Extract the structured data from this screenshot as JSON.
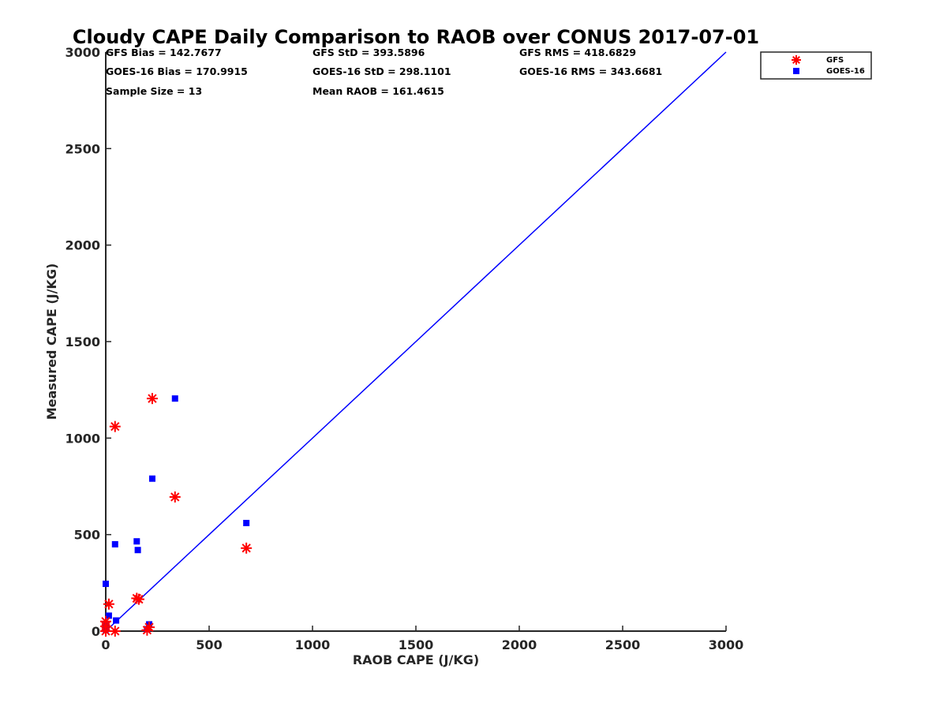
{
  "colors": {
    "gfs": "#ff0000",
    "goes": "#0000ff",
    "line": "#0000ff",
    "axis": "#262626"
  },
  "chart_data": {
    "type": "scatter",
    "title": "Cloudy CAPE Daily Comparison to RAOB over CONUS 2017-07-01",
    "xlabel": "RAOB CAPE (J/KG)",
    "ylabel": "Measured CAPE (J/KG)",
    "xlim": [
      0,
      3000
    ],
    "ylim": [
      0,
      3000
    ],
    "xticks": [
      "0",
      "500",
      "1000",
      "1500",
      "2000",
      "2500",
      "3000"
    ],
    "yticks": [
      "0",
      "500",
      "1000",
      "1500",
      "2000",
      "2500",
      "3000"
    ],
    "grid": false,
    "legend_position": "top-right",
    "stats": [
      "GFS Bias = 142.7677",
      "GFS StD = 393.5896",
      "GFS RMS = 418.6829",
      "GOES-16 Bias = 170.9915",
      "GOES-16 StD = 298.1101",
      "GOES-16 RMS = 343.6681",
      "Sample Size = 13",
      "Mean RAOB = 161.4615"
    ],
    "series": [
      {
        "name": "GFS",
        "marker": "asterisk",
        "points": [
          [
            0,
            0
          ],
          [
            0,
            50
          ],
          [
            0,
            25
          ],
          [
            15,
            140
          ],
          [
            45,
            1060
          ],
          [
            45,
            0
          ],
          [
            150,
            170
          ],
          [
            160,
            165
          ],
          [
            200,
            5
          ],
          [
            210,
            20
          ],
          [
            225,
            1205
          ],
          [
            335,
            695
          ],
          [
            680,
            430
          ]
        ]
      },
      {
        "name": "GOES-16",
        "marker": "square",
        "points": [
          [
            0,
            245
          ],
          [
            0,
            30
          ],
          [
            0,
            10
          ],
          [
            15,
            80
          ],
          [
            45,
            450
          ],
          [
            50,
            55
          ],
          [
            150,
            465
          ],
          [
            155,
            420
          ],
          [
            200,
            10
          ],
          [
            210,
            35
          ],
          [
            225,
            790
          ],
          [
            335,
            1205
          ],
          [
            680,
            560
          ]
        ]
      },
      {
        "name": "",
        "marker": "line",
        "points": [
          [
            0,
            0
          ],
          [
            3000,
            3000
          ]
        ]
      }
    ]
  }
}
